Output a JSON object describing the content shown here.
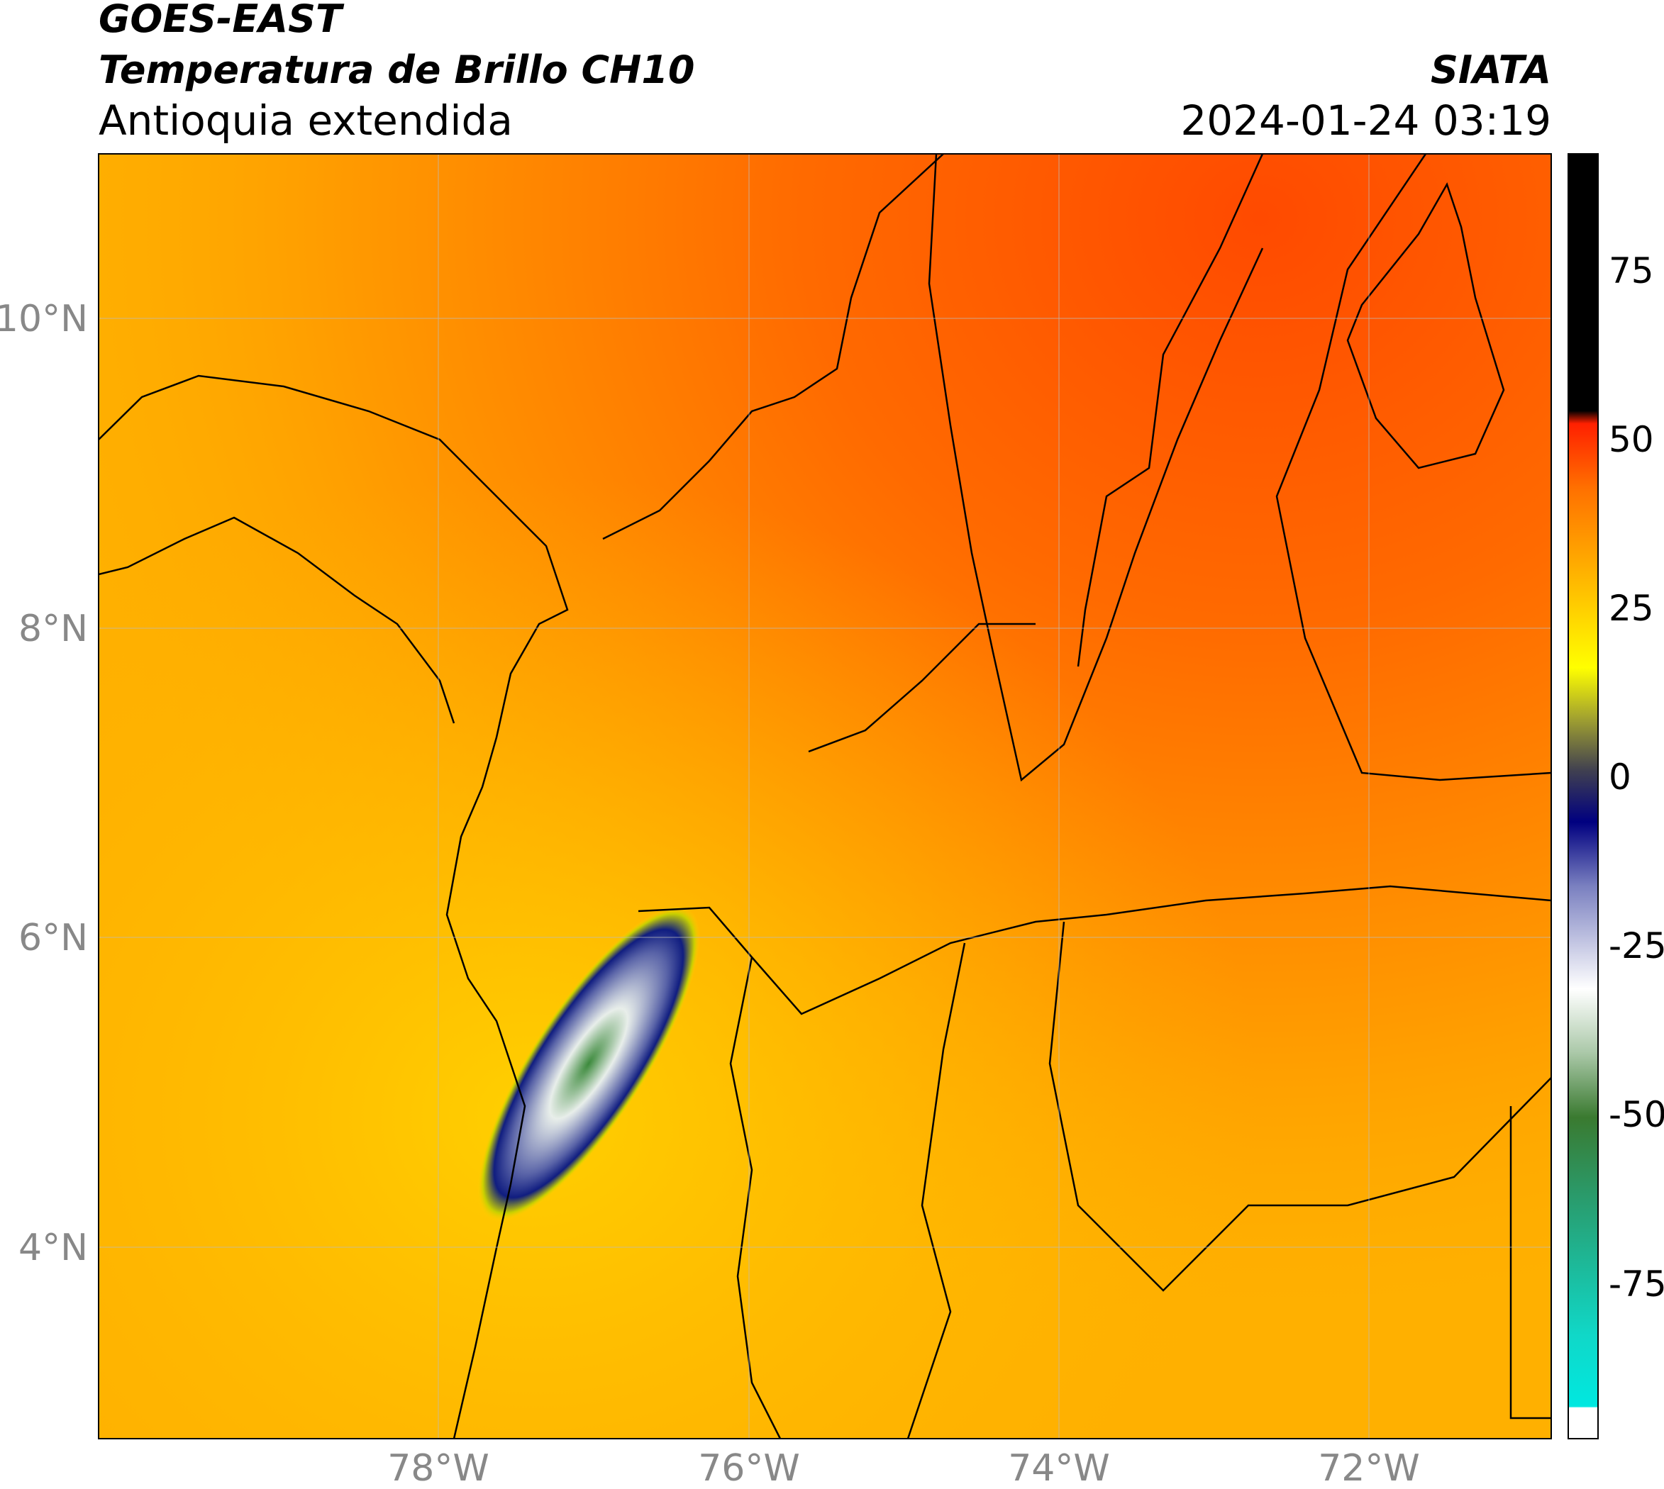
{
  "header": {
    "title": "GOES-EAST",
    "subtitle": "Temperatura de Brillo CH10",
    "region": "Antioquia extendida",
    "source": "SIATA",
    "datetime": "2024-01-24 03:19"
  },
  "map": {
    "lat_labels": [
      "10°N",
      "8°N",
      "6°N",
      "4°N"
    ],
    "lon_labels": [
      "78°W",
      "76°W",
      "74°W",
      "72°W"
    ]
  },
  "colorbar": {
    "tick_labels": [
      "75",
      "50",
      "25",
      "0",
      "-25",
      "-50",
      "-75"
    ]
  }
}
